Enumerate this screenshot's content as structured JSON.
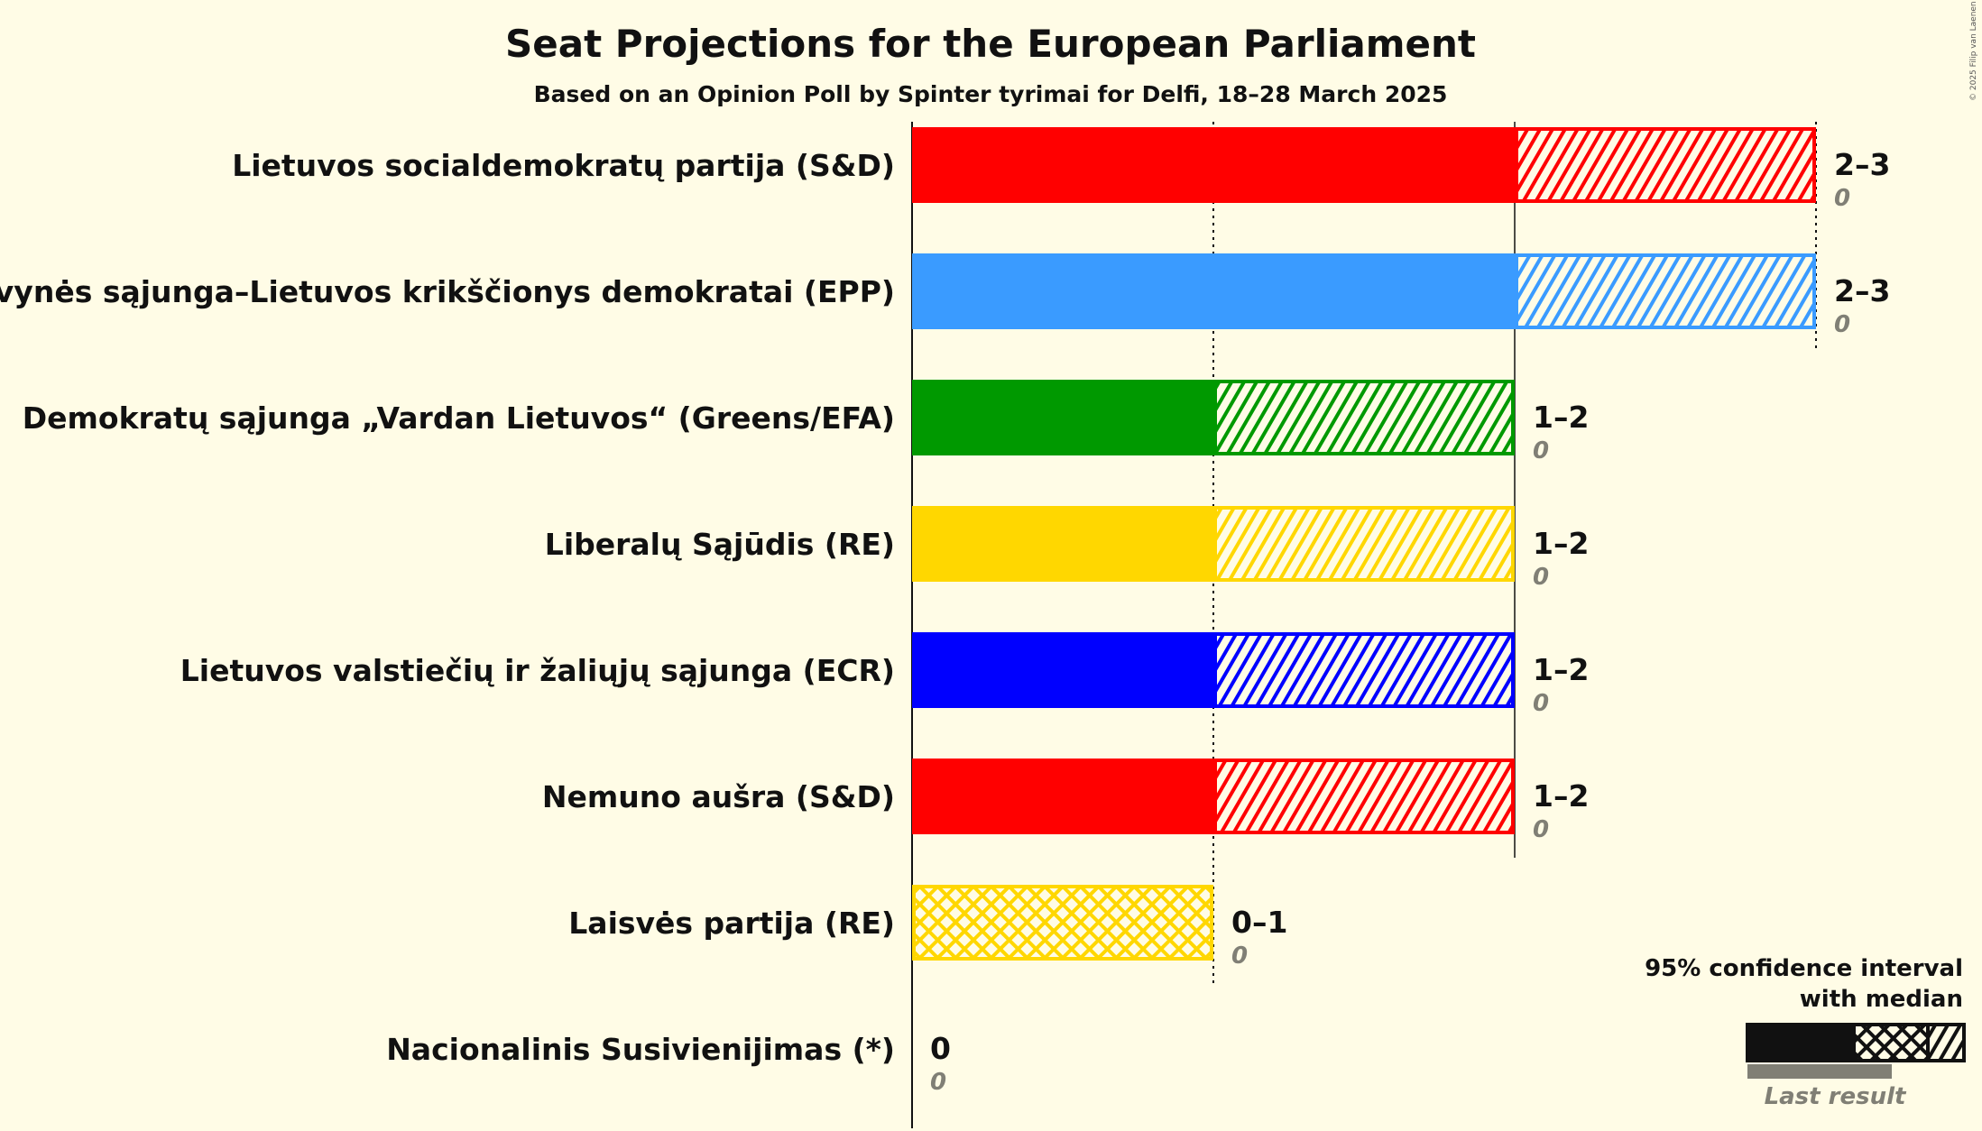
{
  "chart_data": {
    "type": "bar",
    "title": "Seat Projections for the European Parliament",
    "subtitle": "Based on an Opinion Poll by Spinter tyrimai for Delfi, 18–28 March 2025",
    "xlim": [
      0,
      3
    ],
    "gridlines": [
      1,
      2,
      3
    ],
    "parties": [
      {
        "name": "Lietuvos socialdemokratų partija (S&D)",
        "color": "#ff0000",
        "low": 2,
        "median": 2,
        "high": 3,
        "range_label": "2–3",
        "last_result": "0"
      },
      {
        "name": "Tėvynės sąjunga–Lietuvos krikščionys demokratai (EPP)",
        "color": "#3a9bff",
        "low": 2,
        "median": 2,
        "high": 3,
        "range_label": "2–3",
        "last_result": "0"
      },
      {
        "name": "Demokratų sąjunga „Vardan Lietuvos“ (Greens/EFA)",
        "color": "#009900",
        "low": 1,
        "median": 1,
        "high": 2,
        "range_label": "1–2",
        "last_result": "0"
      },
      {
        "name": "Liberalų Sąjūdis (RE)",
        "color": "#ffd700",
        "low": 1,
        "median": 1,
        "high": 2,
        "range_label": "1–2",
        "last_result": "0"
      },
      {
        "name": "Lietuvos valstiečių ir žaliųjų sąjunga (ECR)",
        "color": "#0000ff",
        "low": 1,
        "median": 1,
        "high": 2,
        "range_label": "1–2",
        "last_result": "0"
      },
      {
        "name": "Nemuno aušra (S&D)",
        "color": "#ff0000",
        "low": 1,
        "median": 1,
        "high": 2,
        "range_label": "1–2",
        "last_result": "0"
      },
      {
        "name": "Laisvės partija (RE)",
        "color": "#ffd700",
        "low": 0,
        "median": 0,
        "high": 1,
        "range_label": "0–1",
        "last_result": "0"
      },
      {
        "name": "Nacionalinis Susivienijimas (*)",
        "color": "#888888",
        "low": 0,
        "median": 0,
        "high": 0,
        "range_label": "0",
        "last_result": "0"
      }
    ],
    "legend": {
      "line1": "95% confidence interval",
      "line2": "with median",
      "last_result": "Last result",
      "placement": "bottom-right"
    },
    "copyright": "© 2025 Filip van Laenen"
  }
}
